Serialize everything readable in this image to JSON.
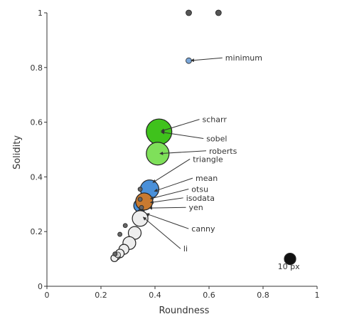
{
  "chart_data": {
    "type": "scatter",
    "title": "",
    "xlabel": "Roundness",
    "ylabel": "Solidity",
    "xlim": [
      0,
      1
    ],
    "ylim": [
      0,
      1
    ],
    "grid": false,
    "x_ticks": [
      {
        "value": 0,
        "label": "0"
      },
      {
        "value": 0.2,
        "label": "0.2"
      },
      {
        "value": 0.4,
        "label": "0.4"
      },
      {
        "value": 0.6,
        "label": "0.6"
      },
      {
        "value": 0.8,
        "label": "0.8"
      },
      {
        "value": 1,
        "label": "1"
      }
    ],
    "y_ticks": [
      {
        "value": 0,
        "label": "0"
      },
      {
        "value": 0.2,
        "label": "0.2"
      },
      {
        "value": 0.4,
        "label": "0.4"
      },
      {
        "value": 0.6,
        "label": "0.6"
      },
      {
        "value": 0.8,
        "label": "0.8"
      },
      {
        "value": 1,
        "label": "1"
      }
    ],
    "points": [
      {
        "x": 0.525,
        "y": 1.0,
        "size_px": 4,
        "color": "#555555"
      },
      {
        "x": 0.635,
        "y": 1.0,
        "size_px": 4,
        "color": "#555555"
      },
      {
        "x": 0.525,
        "y": 0.825,
        "size_px": 4,
        "color": "#7aa6d8"
      },
      {
        "x": 0.415,
        "y": 0.565,
        "size_px": 18,
        "color": "#3fc21c"
      },
      {
        "x": 0.41,
        "y": 0.485,
        "size_px": 16,
        "color": "#7fe05a"
      },
      {
        "x": 0.38,
        "y": 0.355,
        "size_px": 13,
        "color": "#4a90d9"
      },
      {
        "x": 0.345,
        "y": 0.295,
        "size_px": 9,
        "color": "#4a90d9"
      },
      {
        "x": 0.36,
        "y": 0.31,
        "size_px": 12,
        "color": "#c87a30"
      },
      {
        "x": 0.345,
        "y": 0.355,
        "size_px": 3,
        "color": "#666666"
      },
      {
        "x": 0.345,
        "y": 0.318,
        "size_px": 3,
        "color": "#666666"
      },
      {
        "x": 0.35,
        "y": 0.288,
        "size_px": 3,
        "color": "#666666"
      },
      {
        "x": 0.345,
        "y": 0.27,
        "size_px": 4,
        "color": "#555555"
      },
      {
        "x": 0.345,
        "y": 0.248,
        "size_px": 11,
        "color": "#eeeeee"
      },
      {
        "x": 0.325,
        "y": 0.195,
        "size_px": 9,
        "color": "#eeeeee"
      },
      {
        "x": 0.305,
        "y": 0.158,
        "size_px": 9,
        "color": "#eeeeee"
      },
      {
        "x": 0.285,
        "y": 0.135,
        "size_px": 7,
        "color": "#eeeeee"
      },
      {
        "x": 0.27,
        "y": 0.12,
        "size_px": 6,
        "color": "#eeeeee"
      },
      {
        "x": 0.258,
        "y": 0.11,
        "size_px": 5,
        "color": "#eeeeee"
      },
      {
        "x": 0.25,
        "y": 0.103,
        "size_px": 5,
        "color": "#eeeeee"
      },
      {
        "x": 0.262,
        "y": 0.115,
        "size_px": 4,
        "color": "#cccccc"
      },
      {
        "x": 0.29,
        "y": 0.222,
        "size_px": 3,
        "color": "#666666"
      },
      {
        "x": 0.27,
        "y": 0.19,
        "size_px": 3,
        "color": "#666666"
      },
      {
        "x": 0.252,
        "y": 0.118,
        "size_px": 3,
        "color": "#666666"
      },
      {
        "x": 0.9,
        "y": 0.1,
        "size_px": 8,
        "color": "#111111"
      }
    ],
    "annotations": [
      {
        "text": "minimum",
        "point": [
          0.525,
          0.825
        ],
        "label_at": [
          0.66,
          0.825
        ]
      },
      {
        "text": "scharr",
        "point": [
          0.415,
          0.565
        ],
        "label_at": [
          0.575,
          0.6
        ]
      },
      {
        "text": "sobel",
        "point": [
          0.415,
          0.565
        ],
        "label_at": [
          0.59,
          0.53
        ]
      },
      {
        "text": "roberts",
        "point": [
          0.41,
          0.485
        ],
        "label_at": [
          0.6,
          0.485
        ]
      },
      {
        "text": "triangle",
        "point": [
          0.385,
          0.375
        ],
        "label_at": [
          0.54,
          0.455
        ]
      },
      {
        "text": "mean",
        "point": [
          0.39,
          0.345
        ],
        "label_at": [
          0.55,
          0.385
        ]
      },
      {
        "text": "otsu",
        "point": [
          0.375,
          0.318
        ],
        "label_at": [
          0.535,
          0.345
        ]
      },
      {
        "text": "isodata",
        "point": [
          0.375,
          0.305
        ],
        "label_at": [
          0.515,
          0.313
        ]
      },
      {
        "text": "yen",
        "point": [
          0.37,
          0.286
        ],
        "label_at": [
          0.525,
          0.278
        ]
      },
      {
        "text": "canny",
        "point": [
          0.36,
          0.268
        ],
        "label_at": [
          0.535,
          0.2
        ]
      },
      {
        "text": "li",
        "point": [
          0.35,
          0.258
        ],
        "label_at": [
          0.505,
          0.127
        ]
      }
    ],
    "scale_label": {
      "text": "10 px",
      "at": [
        0.895,
        0.062
      ]
    }
  }
}
